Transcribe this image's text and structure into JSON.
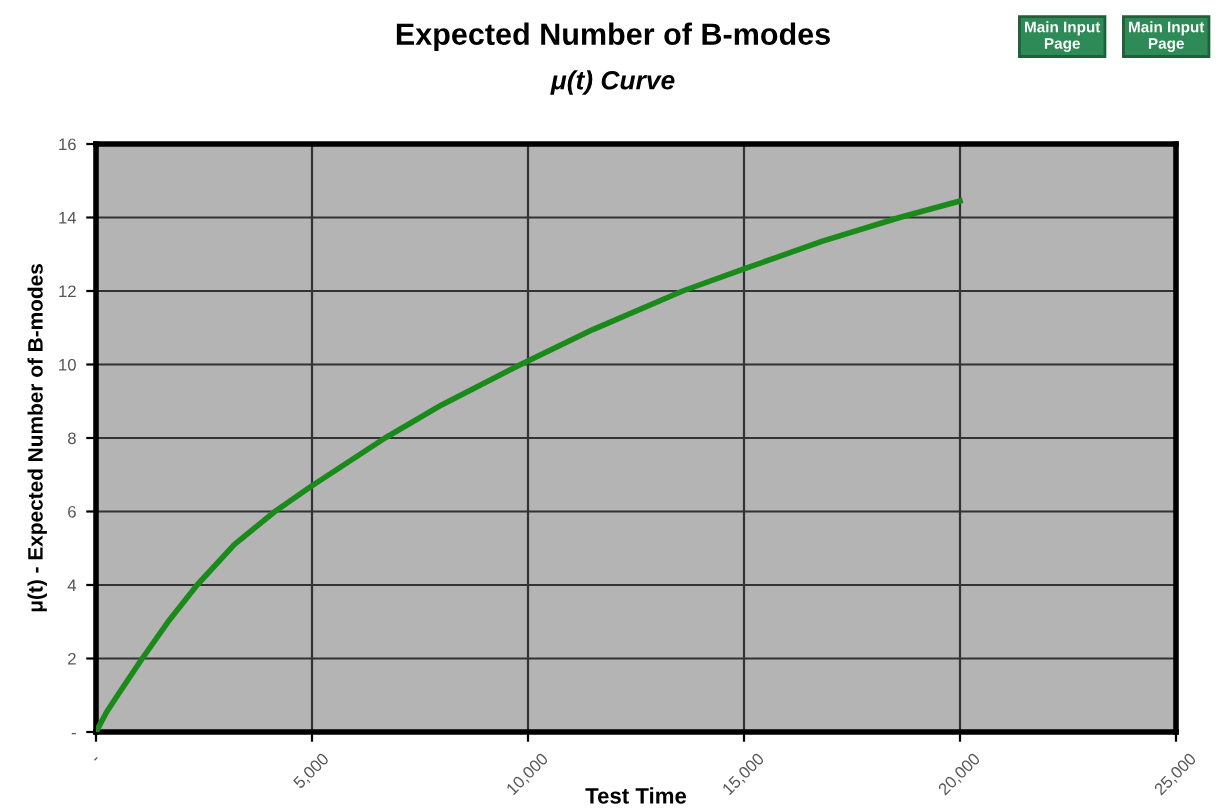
{
  "chart_data": {
    "type": "line",
    "title": "Expected Number of B-modes",
    "subtitle": "μ(t) Curve",
    "xlabel": "Test Time",
    "ylabel": "μ(t) - Expected Number of B-modes",
    "annotations": [
      "Main Input Page",
      "Main Input Page"
    ],
    "series": [
      {
        "color": "#1a8a1a",
        "x": [
          0,
          250,
          500,
          1070,
          1700,
          2340,
          3200,
          4140,
          5000,
          6690,
          8000,
          9830,
          11500,
          13580,
          15000,
          16800,
          18600,
          20000
        ],
        "values": [
          0,
          0.55,
          1.0,
          2,
          3.05,
          4,
          5.1,
          6,
          6.7,
          8,
          8.9,
          10,
          10.95,
          12,
          12.6,
          13.35,
          14,
          14.45
        ]
      }
    ],
    "xlim": [
      0,
      25000
    ],
    "xticks": [
      {
        "value": 0,
        "label": "-"
      },
      {
        "value": 5000,
        "label": "5,000"
      },
      {
        "value": 10000,
        "label": "10,000"
      },
      {
        "value": 15000,
        "label": "15,000"
      },
      {
        "value": 20000,
        "label": "20,000"
      },
      {
        "value": 25000,
        "label": "25,000"
      }
    ],
    "ylim": [
      0,
      16
    ],
    "yticks": [
      {
        "value": 0,
        "label": "-"
      },
      2,
      4,
      6,
      8,
      10,
      12,
      14,
      16
    ],
    "grid": true,
    "marker": "none",
    "line_style": "solid"
  }
}
